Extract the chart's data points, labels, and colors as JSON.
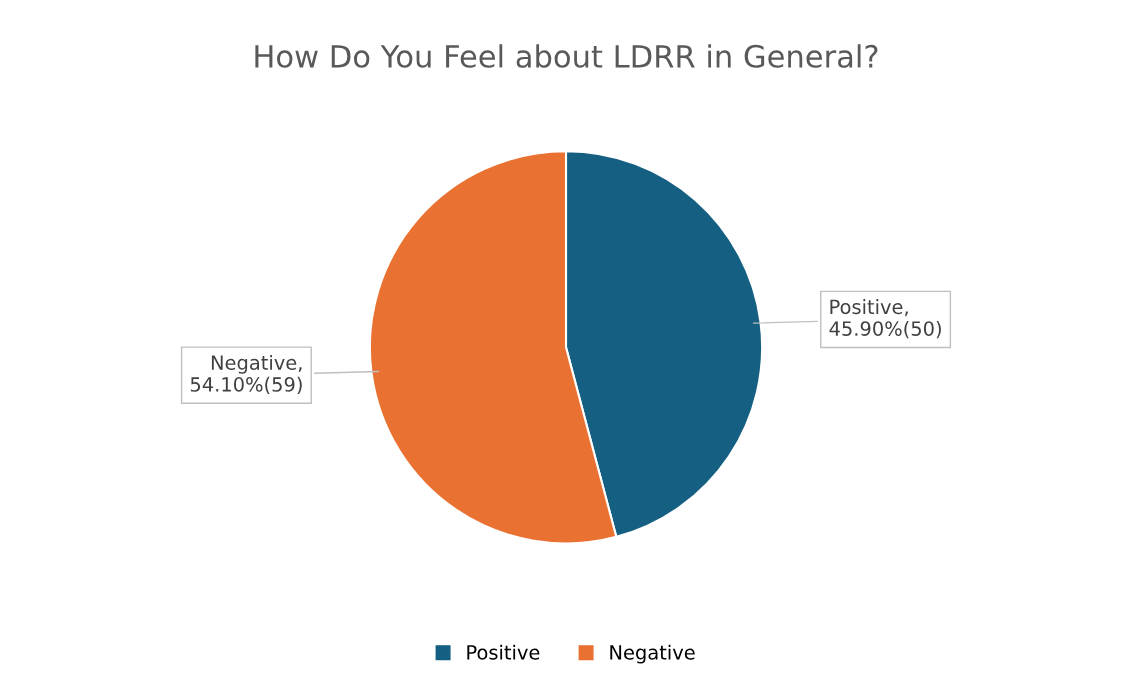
{
  "chart_data": {
    "type": "pie",
    "title": "How Do You Feel about LDRR in General?",
    "categories": [
      "Positive",
      "Negative"
    ],
    "values": [
      50,
      59
    ],
    "value_labels": [
      "Positive, 45.90%(50)",
      "Negative, 54.10%(59)"
    ],
    "colors": [
      "#156082",
      "#e97132"
    ],
    "legend": "bottom"
  }
}
